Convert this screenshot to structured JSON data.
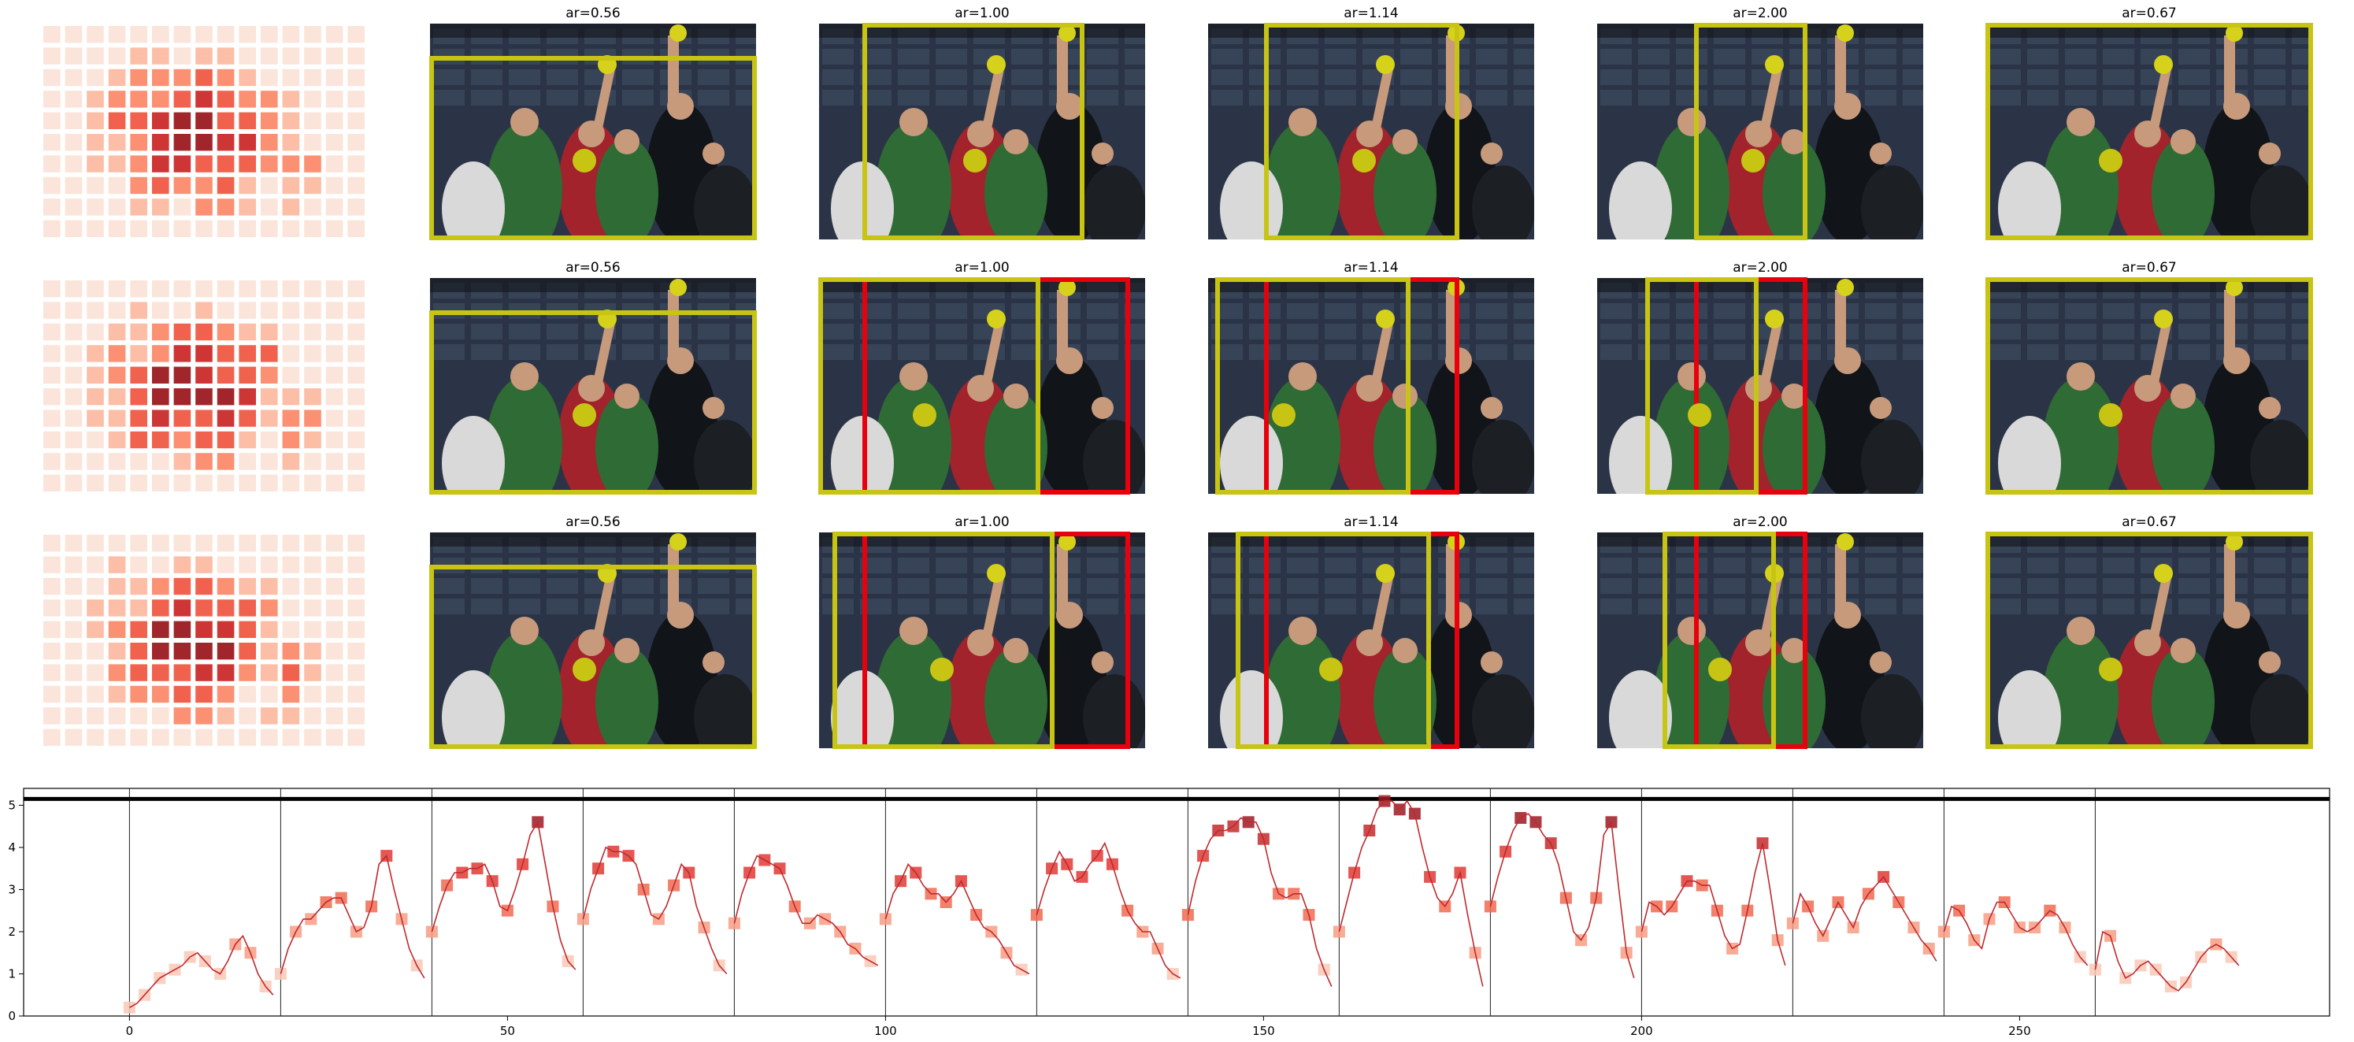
{
  "panels": {
    "rows": 3,
    "titles": [
      "ar=0.56",
      "ar=1.00",
      "ar=1.14",
      "ar=2.00",
      "ar=0.67"
    ],
    "box_color": "#c8c414",
    "alt_box_color": "#e8000c",
    "photo_palette": {
      "bg": "#2b3446",
      "crowd": "#3d4b5f",
      "suit": "#2f6b35",
      "skin": "#c79a7c",
      "dark": "#111418"
    }
  },
  "heatmap": {
    "palette": [
      "#fbe3d8",
      "#fcbba1",
      "#fb8a6a",
      "#ef5a45",
      "#cb2a2a",
      "#9b1a20"
    ],
    "cols": 15,
    "rows": 10
  },
  "chart_data": {
    "type": "line",
    "title": "",
    "xlabel": "",
    "ylabel": "",
    "xlim": [
      -14,
      291
    ],
    "ylim": [
      0,
      5.4
    ],
    "xticks": [
      0,
      50,
      100,
      150,
      200,
      250
    ],
    "yticks": [
      0,
      1,
      2,
      3,
      4,
      5
    ],
    "vlines": [
      0,
      20,
      40,
      60,
      80,
      100,
      120,
      140,
      160,
      180,
      200,
      220,
      240,
      260
    ],
    "hline": 5.15,
    "line_color": "#c0282e",
    "segments": [
      [
        0.2,
        0.3,
        0.5,
        0.7,
        0.9,
        1.0,
        1.1,
        1.2,
        1.4,
        1.5,
        1.3,
        1.1,
        1.0,
        1.3,
        1.7,
        1.9,
        1.5,
        1.0,
        0.7,
        0.5
      ],
      [
        1.0,
        1.6,
        2.0,
        2.3,
        2.3,
        2.5,
        2.7,
        2.8,
        2.8,
        2.4,
        2.0,
        2.1,
        2.6,
        3.6,
        3.8,
        3.0,
        2.3,
        1.6,
        1.2,
        0.9
      ],
      [
        2.0,
        2.6,
        3.1,
        3.4,
        3.4,
        3.5,
        3.5,
        3.6,
        3.2,
        2.6,
        2.5,
        3.0,
        3.6,
        4.3,
        4.6,
        3.6,
        2.6,
        1.8,
        1.3,
        1.1
      ],
      [
        2.3,
        3.0,
        3.5,
        4.0,
        3.9,
        3.9,
        3.8,
        3.6,
        3.0,
        2.4,
        2.3,
        2.6,
        3.1,
        3.6,
        3.4,
        2.6,
        2.1,
        1.6,
        1.2,
        1.0
      ],
      [
        2.2,
        2.9,
        3.4,
        3.8,
        3.7,
        3.6,
        3.5,
        3.1,
        2.6,
        2.2,
        2.2,
        2.4,
        2.3,
        2.2,
        2.0,
        1.7,
        1.6,
        1.4,
        1.3,
        1.2
      ],
      [
        2.3,
        2.9,
        3.2,
        3.6,
        3.4,
        3.1,
        2.9,
        2.9,
        2.7,
        2.9,
        3.2,
        2.8,
        2.4,
        2.1,
        2.0,
        1.8,
        1.5,
        1.2,
        1.1,
        1.0
      ],
      [
        2.4,
        3.0,
        3.5,
        3.9,
        3.6,
        3.2,
        3.3,
        3.6,
        3.8,
        4.1,
        3.6,
        3.0,
        2.5,
        2.2,
        2.0,
        2.0,
        1.6,
        1.2,
        1.0,
        0.9
      ],
      [
        2.4,
        3.2,
        3.8,
        4.2,
        4.4,
        4.4,
        4.5,
        4.7,
        4.6,
        4.6,
        4.2,
        3.4,
        2.9,
        2.8,
        2.9,
        2.9,
        2.4,
        1.6,
        1.1,
        0.7
      ],
      [
        2.0,
        2.7,
        3.4,
        4.0,
        4.4,
        4.9,
        5.1,
        5.1,
        4.9,
        5.1,
        4.8,
        4.0,
        3.3,
        2.8,
        2.6,
        2.9,
        3.4,
        2.4,
        1.5,
        0.7
      ],
      [
        2.6,
        3.3,
        3.9,
        4.4,
        4.7,
        4.8,
        4.6,
        4.3,
        4.1,
        3.6,
        2.8,
        2.0,
        1.8,
        2.1,
        2.8,
        4.3,
        4.6,
        3.0,
        1.5,
        0.9
      ],
      [
        2.0,
        2.7,
        2.6,
        2.4,
        2.6,
        2.9,
        3.2,
        3.2,
        3.1,
        3.1,
        2.5,
        1.9,
        1.6,
        1.7,
        2.5,
        3.4,
        4.1,
        3.0,
        1.8,
        1.2
      ],
      [
        2.2,
        2.9,
        2.6,
        2.2,
        1.9,
        2.3,
        2.7,
        2.4,
        2.1,
        2.6,
        2.9,
        3.1,
        3.3,
        3.0,
        2.7,
        2.4,
        2.1,
        1.8,
        1.6,
        1.3
      ],
      [
        2.0,
        2.6,
        2.5,
        2.2,
        1.8,
        1.6,
        2.3,
        2.7,
        2.7,
        2.4,
        2.1,
        2.0,
        2.1,
        2.3,
        2.5,
        2.4,
        2.1,
        1.7,
        1.4,
        1.2
      ],
      [
        1.1,
        2.0,
        1.9,
        1.3,
        0.9,
        1.0,
        1.2,
        1.3,
        1.1,
        0.9,
        0.7,
        0.6,
        0.8,
        1.1,
        1.4,
        1.6,
        1.7,
        1.6,
        1.4,
        1.2
      ]
    ]
  }
}
